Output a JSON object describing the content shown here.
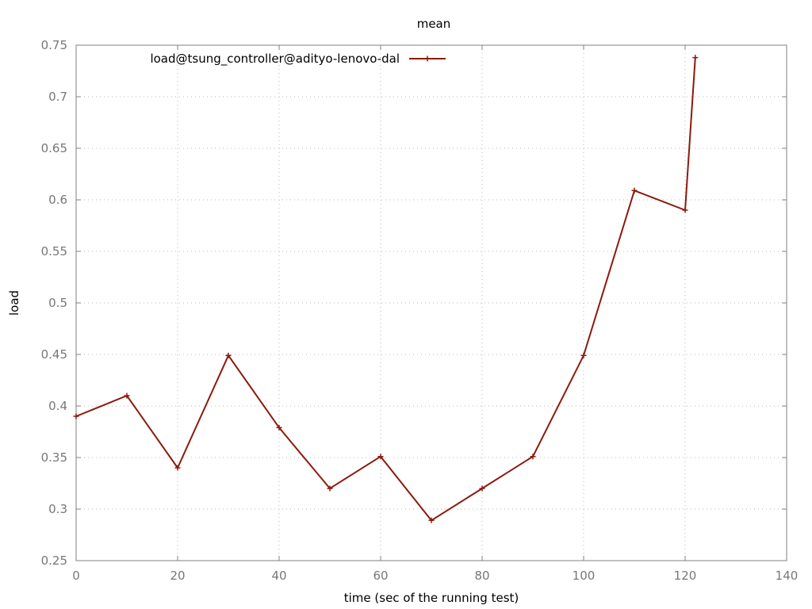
{
  "chart_data": {
    "type": "line",
    "title": "mean",
    "xlabel": "time (sec of the running test)",
    "ylabel": "load",
    "xlim": [
      0,
      140
    ],
    "ylim": [
      0.25,
      0.75
    ],
    "x_ticks": [
      0,
      20,
      40,
      60,
      80,
      100,
      120,
      140
    ],
    "y_ticks": [
      0.25,
      0.3,
      0.35,
      0.4,
      0.45,
      0.5,
      0.55,
      0.6,
      0.65,
      0.7,
      0.75
    ],
    "grid": true,
    "legend_position": "top-left",
    "series": [
      {
        "name": "load@tsung_controller@adityo-lenovo-dal",
        "color": "#8b1a0e",
        "points": [
          {
            "x": 0,
            "y": 0.39
          },
          {
            "x": 10,
            "y": 0.41
          },
          {
            "x": 20,
            "y": 0.34
          },
          {
            "x": 30,
            "y": 0.449
          },
          {
            "x": 40,
            "y": 0.379
          },
          {
            "x": 50,
            "y": 0.32
          },
          {
            "x": 60,
            "y": 0.351
          },
          {
            "x": 70,
            "y": 0.289
          },
          {
            "x": 80,
            "y": 0.32
          },
          {
            "x": 90,
            "y": 0.351
          },
          {
            "x": 100,
            "y": 0.449
          },
          {
            "x": 110,
            "y": 0.609
          },
          {
            "x": 120,
            "y": 0.59
          },
          {
            "x": 122,
            "y": 0.738
          }
        ]
      }
    ]
  }
}
